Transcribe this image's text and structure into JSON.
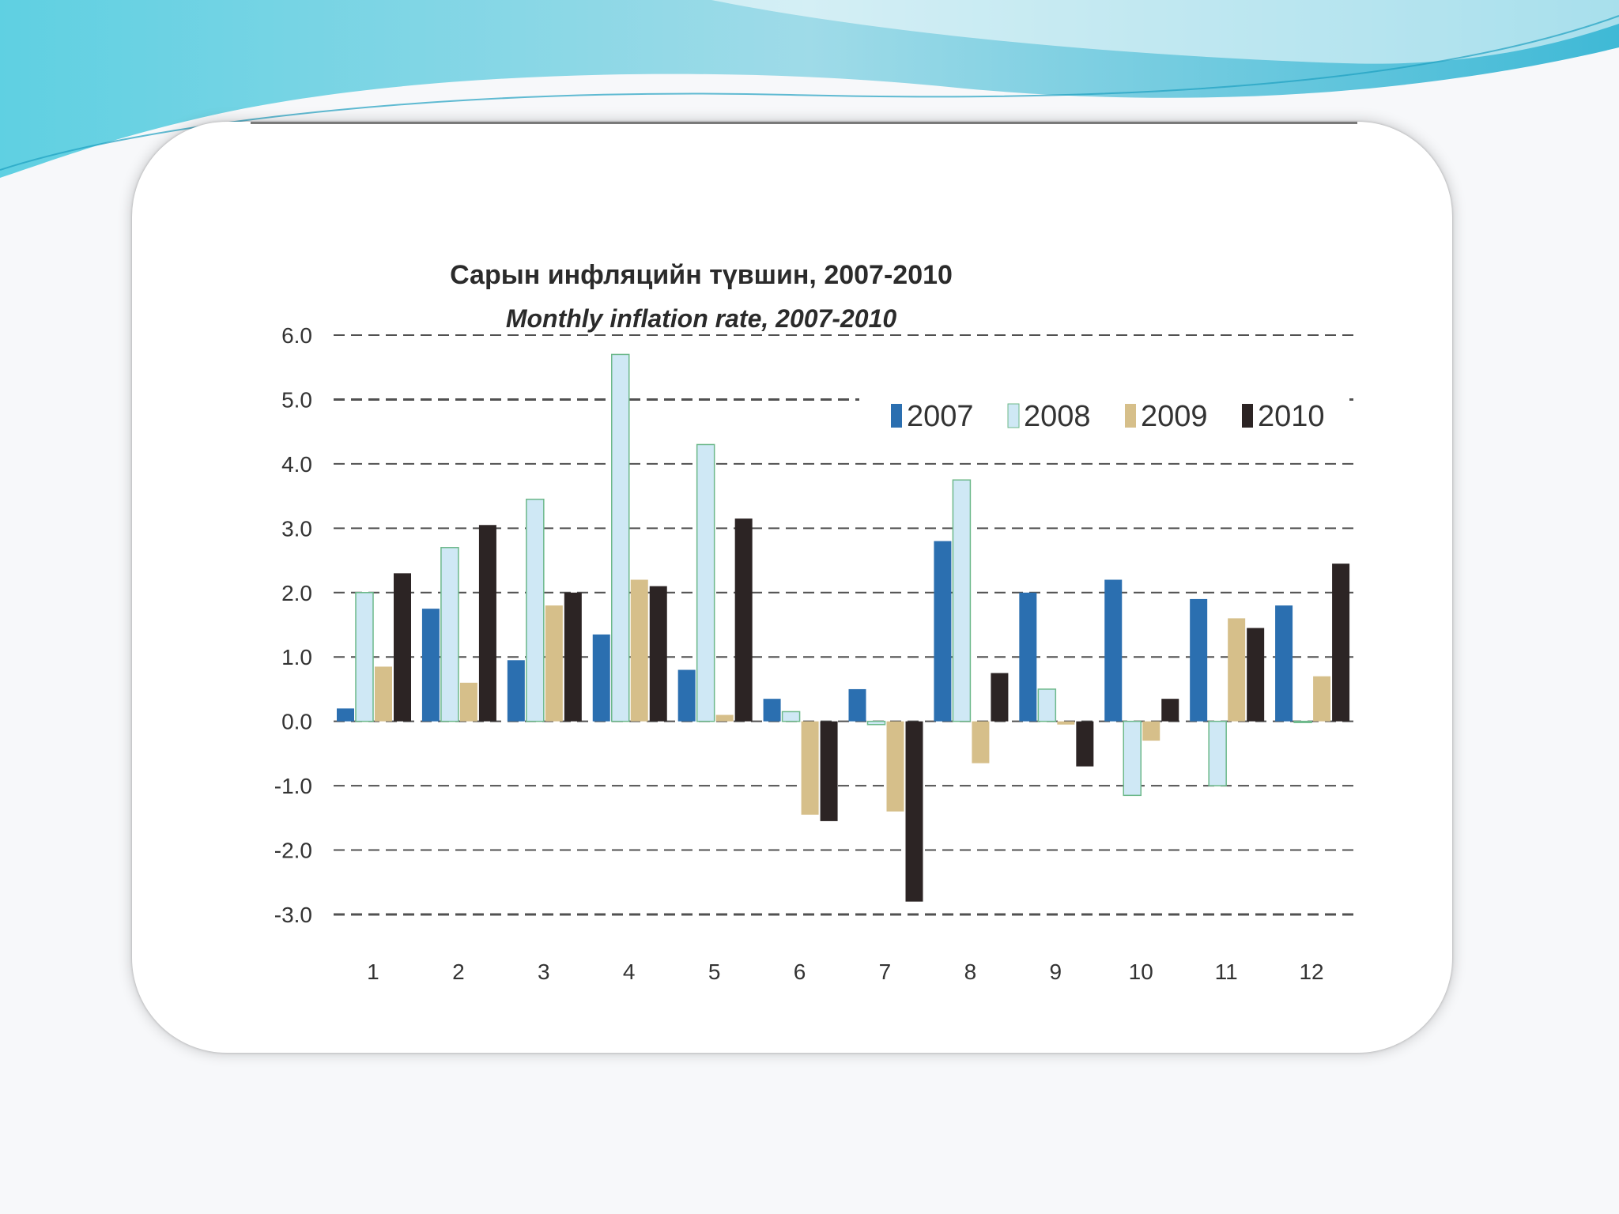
{
  "colors": {
    "wave_light": "#bfe9f1",
    "wave_dark": "#4cc3d9",
    "series_2007": "#2b6fb0",
    "series_2008": "#cfe8f5",
    "series_2009": "#d6bf8a",
    "series_2010": "#2c2424",
    "grid": "#333333"
  },
  "chart_data": {
    "type": "bar",
    "title": "Сарын инфляцийн түвшин, 2007-2010",
    "subtitle": "Monthly inflation rate, 2007-2010",
    "xlabel": "",
    "ylabel": "",
    "categories": [
      "1",
      "2",
      "3",
      "4",
      "5",
      "6",
      "7",
      "8",
      "9",
      "10",
      "11",
      "12"
    ],
    "yticks": [
      "6.0",
      "5.0",
      "4.0",
      "3.0",
      "2.0",
      "1.0",
      "0.0",
      "-1.0",
      "-2.0",
      "-3.0"
    ],
    "ylim": [
      -3,
      6
    ],
    "grid": true,
    "grid_style": "dashed",
    "legend_position": "top-right",
    "series": [
      {
        "name": "2007",
        "color_key": "series_2007",
        "values": [
          0.2,
          1.75,
          0.95,
          1.35,
          0.8,
          0.35,
          0.5,
          2.8,
          2.0,
          2.2,
          1.9,
          1.8
        ]
      },
      {
        "name": "2008",
        "color_key": "series_2008",
        "values": [
          2.0,
          2.7,
          3.45,
          5.7,
          4.3,
          0.15,
          -0.05,
          3.75,
          0.5,
          -1.15,
          -1.0,
          0.0
        ]
      },
      {
        "name": "2009",
        "color_key": "series_2009",
        "values": [
          0.85,
          0.6,
          1.8,
          2.2,
          0.1,
          -1.45,
          -1.4,
          -0.65,
          -0.05,
          -0.3,
          1.6,
          0.7
        ]
      },
      {
        "name": "2010",
        "color_key": "series_2010",
        "values": [
          2.3,
          3.05,
          2.0,
          2.1,
          3.15,
          -1.55,
          -2.8,
          0.75,
          -0.7,
          0.35,
          1.45,
          2.45
        ]
      }
    ]
  }
}
